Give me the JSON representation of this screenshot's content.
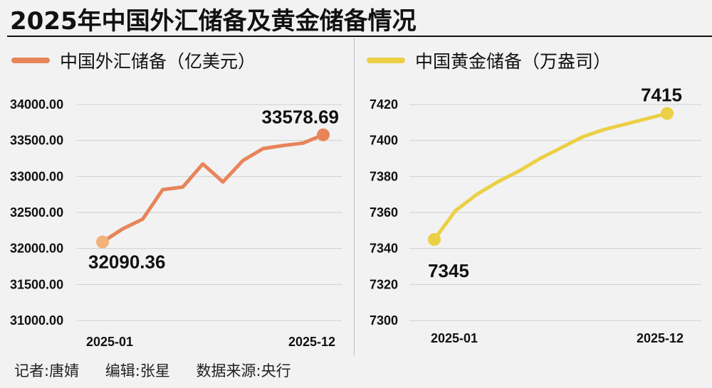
{
  "title": "2025年中国外汇储备及黄金储备情况",
  "footer": {
    "reporter": "记者:唐婧",
    "editor": "编辑:张星",
    "source": "数据来源:央行"
  },
  "chart_data": [
    {
      "type": "line",
      "legend": "中国外汇储备（亿美元）",
      "color": "#e8845a",
      "start_color": "#f3b27a",
      "x": [
        "2025-01",
        "2025-02",
        "2025-03",
        "2025-04",
        "2025-05",
        "2025-06",
        "2025-07",
        "2025-08",
        "2025-09",
        "2025-10",
        "2025-11",
        "2025-12"
      ],
      "xtick_labels": [
        "2025-01",
        "2025-12"
      ],
      "values": [
        32090.36,
        32272,
        32407,
        32817,
        32853,
        33174,
        32924,
        33222,
        33387,
        33430,
        33464,
        33578.69
      ],
      "first_label": "32090.36",
      "last_label": "33578.69",
      "ylim": [
        31000,
        34000
      ],
      "yticks": [
        31000,
        31500,
        32000,
        32500,
        33000,
        33500,
        34000
      ],
      "ytick_labels": [
        "31000.00",
        "31500.00",
        "32000.00",
        "32500.00",
        "33000.00",
        "33500.00",
        "34000.00"
      ],
      "grid": true
    },
    {
      "type": "line",
      "legend": "中国黄金储备（万盎司）",
      "color": "#ecd045",
      "start_color": "#ecd045",
      "x": [
        "2025-01",
        "2025-02",
        "2025-03",
        "2025-04",
        "2025-05",
        "2025-06",
        "2025-07",
        "2025-08",
        "2025-09",
        "2025-10",
        "2025-11",
        "2025-12"
      ],
      "xtick_labels": [
        "2025-01",
        "2025-12"
      ],
      "values": [
        7345,
        7361,
        7370,
        7377,
        7383,
        7390,
        7396,
        7402,
        7406,
        7409,
        7412,
        7415
      ],
      "first_label": "7345",
      "last_label": "7415",
      "ylim": [
        7300,
        7420
      ],
      "yticks": [
        7300,
        7320,
        7340,
        7360,
        7380,
        7400,
        7420
      ],
      "ytick_labels": [
        "7300",
        "7320",
        "7340",
        "7360",
        "7380",
        "7400",
        "7420"
      ],
      "grid": true
    }
  ]
}
